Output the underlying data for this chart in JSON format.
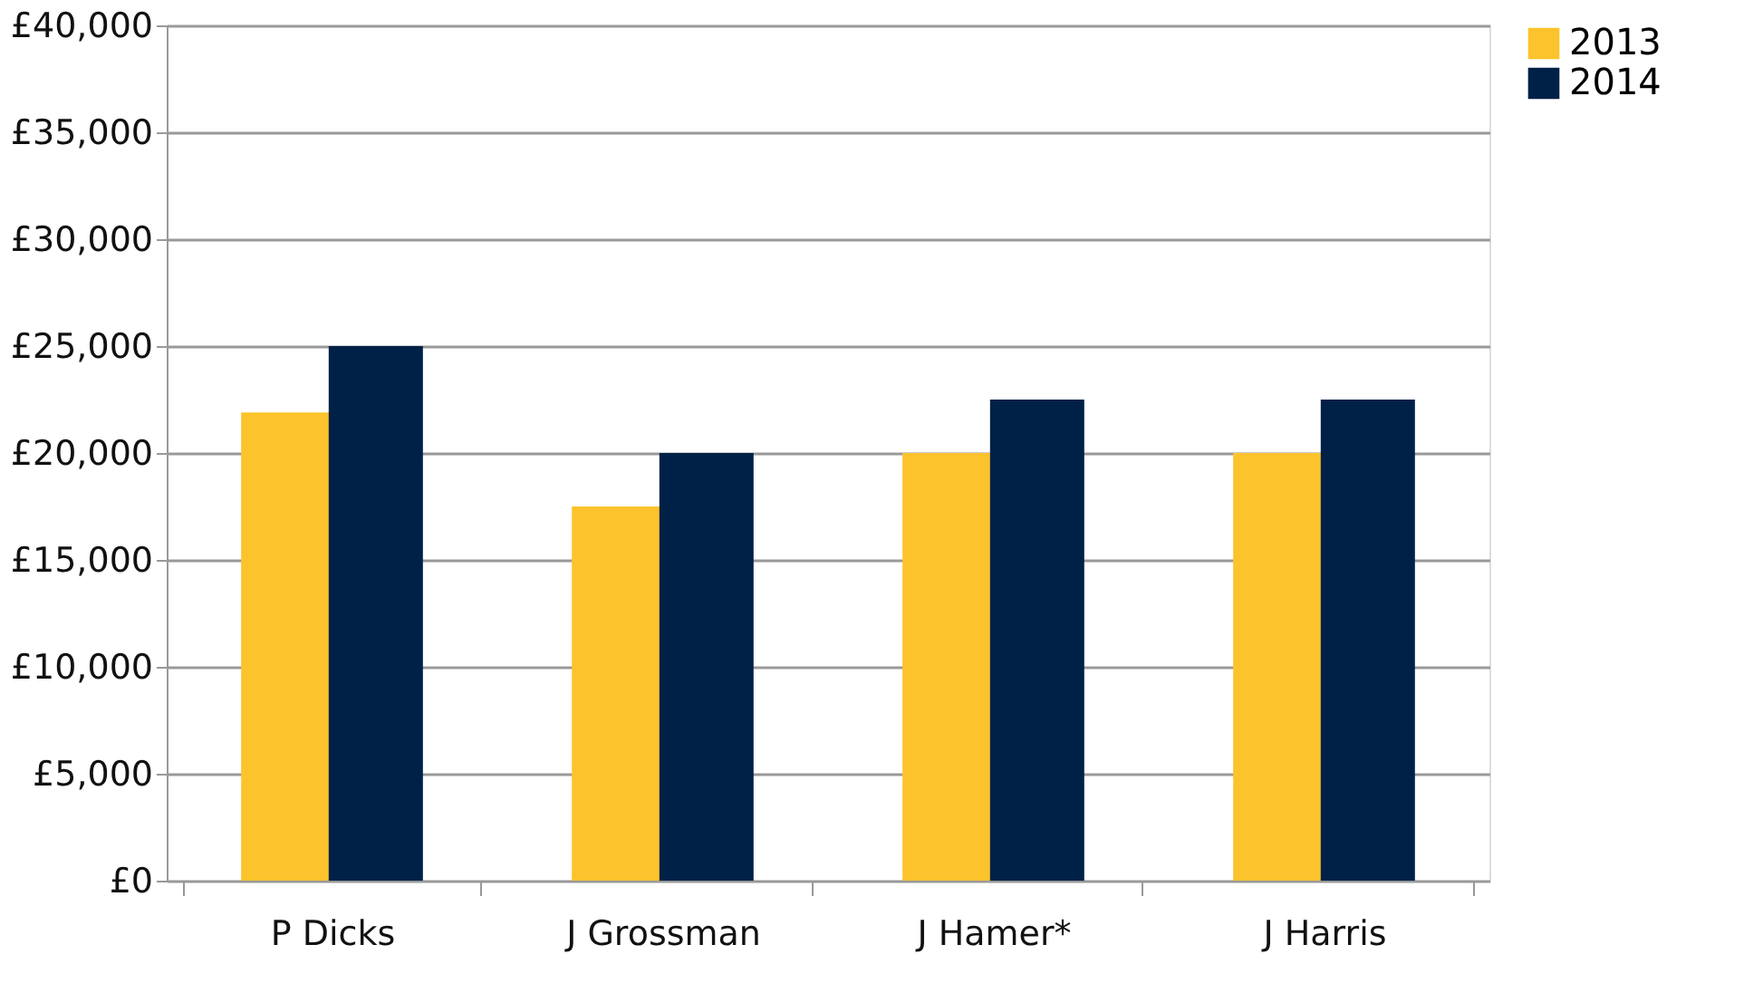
{
  "chart_data": {
    "type": "bar",
    "categories": [
      "P Dicks",
      "J Grossman",
      "J Hamer*",
      "J Harris"
    ],
    "series": [
      {
        "name": "2013",
        "color": "#fcc32c",
        "values": [
          21900,
          17500,
          20000,
          20000
        ]
      },
      {
        "name": "2014",
        "color": "#002147",
        "values": [
          25000,
          20000,
          22500,
          22500
        ]
      }
    ],
    "ylim": [
      0,
      40000
    ],
    "yticks": [
      {
        "value": 0,
        "label": "£0"
      },
      {
        "value": 5000,
        "label": "£5,000"
      },
      {
        "value": 10000,
        "label": "£10,000"
      },
      {
        "value": 15000,
        "label": "£15,000"
      },
      {
        "value": 20000,
        "label": "£20,000"
      },
      {
        "value": 25000,
        "label": "£25,000"
      },
      {
        "value": 30000,
        "label": "£30,000"
      },
      {
        "value": 35000,
        "label": "£35,000"
      },
      {
        "value": 40000,
        "label": "£40,000"
      }
    ],
    "grid": "y",
    "legend": "right"
  }
}
